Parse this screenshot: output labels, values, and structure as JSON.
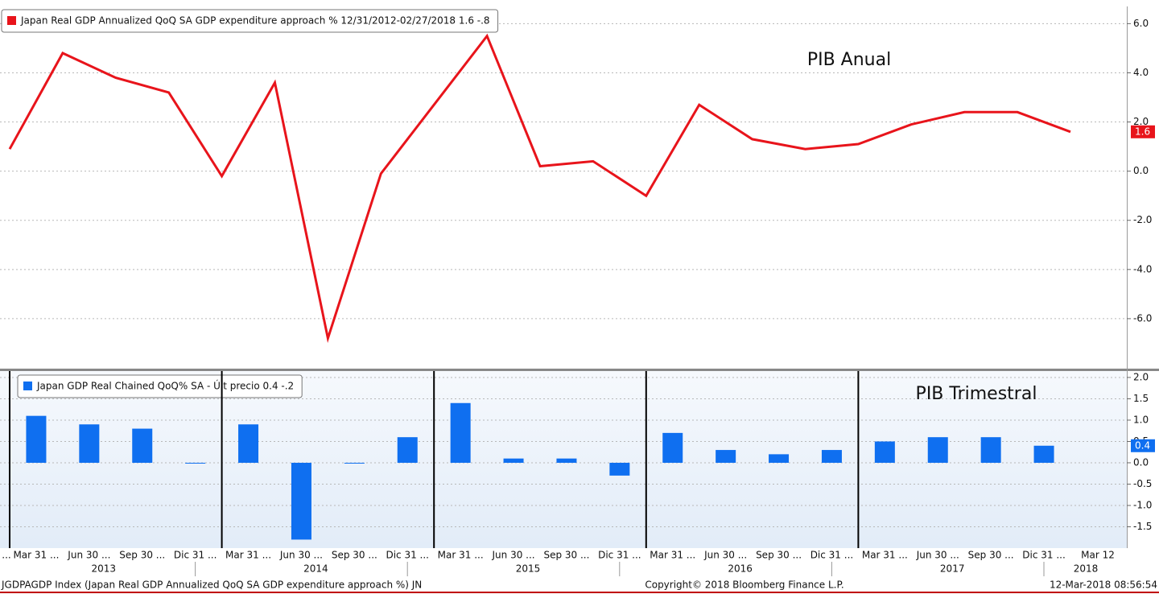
{
  "chart_data": [
    {
      "type": "line",
      "annotation": "PIB Anual",
      "categories": [
        null,
        null,
        null,
        null,
        null,
        null,
        null,
        null,
        null,
        null,
        null,
        null,
        null,
        null,
        null,
        null,
        null,
        null,
        null,
        null,
        null
      ],
      "series": [
        {
          "name": "Japan Real GDP Annualized QoQ SA GDP expenditure approach % 12/31/2012-02/27/2018 1.6  -.8",
          "color": "#e8141b",
          "values": [
            0.9,
            4.8,
            3.8,
            3.2,
            -0.2,
            3.6,
            -6.8,
            -0.1,
            2.7,
            5.5,
            0.2,
            0.4,
            -1.0,
            2.7,
            1.3,
            0.9,
            1.1,
            1.9,
            2.4,
            2.4,
            1.6
          ]
        }
      ],
      "ylim": [
        -8,
        6.7
      ],
      "yticks": [
        {
          "value": -6,
          "label": "-6.0"
        },
        {
          "value": -4,
          "label": "-4.0"
        },
        {
          "value": -2,
          "label": "-2.0"
        },
        {
          "value": 0,
          "label": "0.0"
        },
        {
          "value": 2,
          "label": "2.0"
        },
        {
          "value": 4,
          "label": "4.0"
        },
        {
          "value": 6,
          "label": "6.0"
        }
      ],
      "grid": true
    },
    {
      "type": "bar",
      "annotation": "PIB Trimestral",
      "categories": [
        "Mar 31 ...",
        "Jun 30 ...",
        "Sep 30 ...",
        "Dic 31 ...",
        "Mar 31 ...",
        "Jun 30 ...",
        "Sep 30 ...",
        "Dic 31 ...",
        "Mar 31 ...",
        "Jun 30 ...",
        "Sep 30 ...",
        "Dic 31 ...",
        "Mar 31 ...",
        "Jun 30 ...",
        "Sep 30 ...",
        "Dic 31 ...",
        "Mar 31 ...",
        "Jun 30 ...",
        "Sep 30 ...",
        "Dic 31 ..."
      ],
      "series": [
        {
          "name": "Japan GDP Real Chained QoQ% SA - Últ precio 0.4  -.2",
          "color": "#0f6ff0",
          "values": [
            1.1,
            0.9,
            0.8,
            0.0,
            0.9,
            -1.8,
            0.0,
            0.6,
            1.4,
            0.1,
            0.1,
            -0.3,
            0.7,
            0.3,
            0.2,
            0.3,
            0.5,
            0.6,
            0.6,
            0.4
          ]
        }
      ],
      "ylim": [
        -2.0,
        2.15
      ],
      "yticks": [
        {
          "value": -1.5,
          "label": "-1.5"
        },
        {
          "value": -1,
          "label": "-1.0"
        },
        {
          "value": -0.5,
          "label": "-0.5"
        },
        {
          "value": 0,
          "label": "0.0"
        },
        {
          "value": 0.5,
          "label": "0.5"
        },
        {
          "value": 1,
          "label": "1.0"
        },
        {
          "value": 1.5,
          "label": "1.5"
        },
        {
          "value": 2,
          "label": "2.0"
        }
      ],
      "grid": true
    }
  ],
  "x_axis": {
    "lead_label": "...",
    "end_label": "Mar 12",
    "years": [
      "2013",
      "2014",
      "2015",
      "2016",
      "2017",
      "2018"
    ]
  },
  "footer": {
    "left": "JGDPAGDP Index (Japan Real GDP Annualized QoQ SA GDP expenditure approach %) JN",
    "center": "Copyright© 2018 Bloomberg Finance L.P.",
    "right": "12-Mar-2018 08:56:54"
  }
}
